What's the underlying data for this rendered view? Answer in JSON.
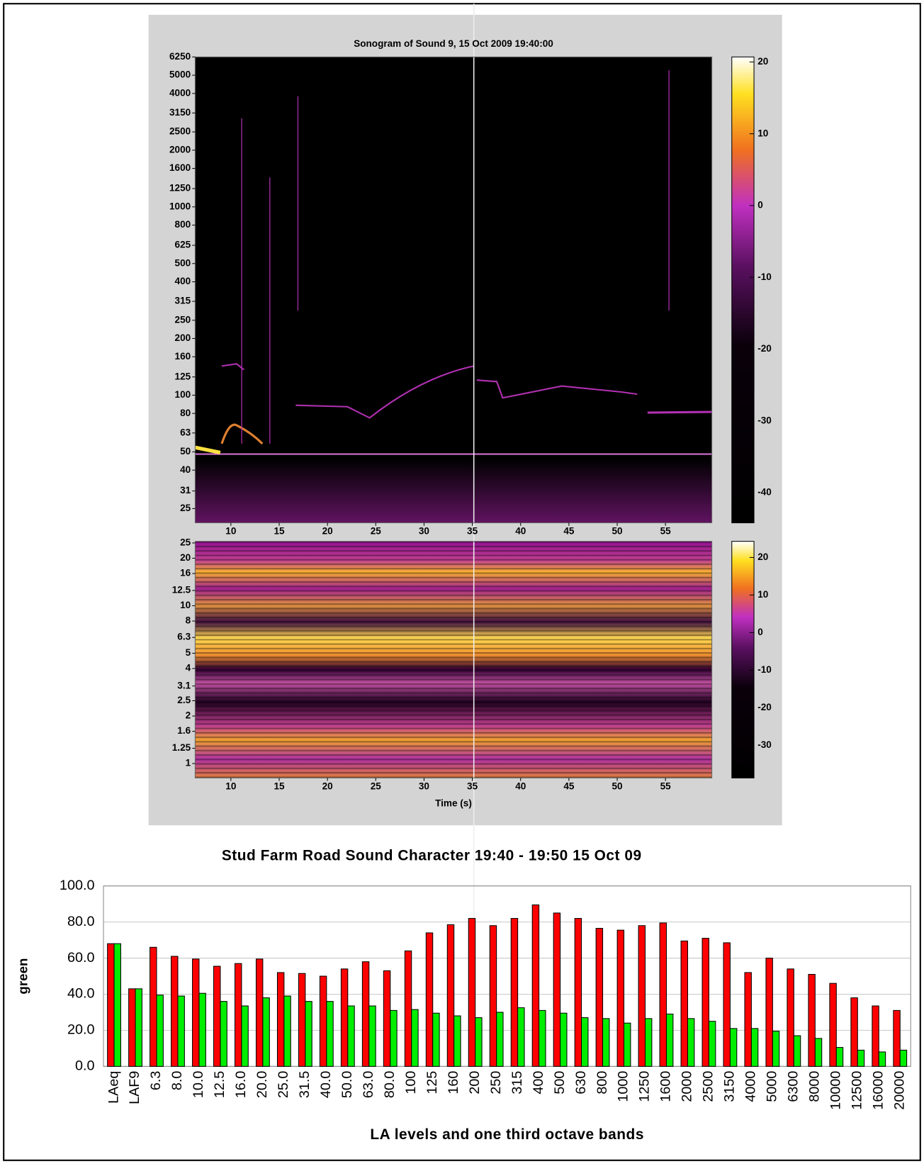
{
  "chart_data": [
    {
      "type": "heatmap",
      "title": "Sonogram of Sound 9, 15 Oct 2009 19:40:00",
      "xlim": [
        6.3,
        59.8
      ],
      "xticks": [
        10,
        15,
        20,
        25,
        30,
        35,
        40,
        45,
        50,
        55
      ],
      "ylim": [
        21,
        6250
      ],
      "ylog": true,
      "yticks": [
        6250,
        5000,
        4000,
        3150,
        2500,
        2000,
        1600,
        1250,
        1000,
        800,
        625,
        500,
        400,
        315,
        250,
        200,
        160,
        125,
        100,
        80,
        63,
        50,
        40,
        31,
        25
      ],
      "clim": [
        -44.2,
        20.7
      ],
      "colorbar_ticks": [
        20,
        10,
        0,
        -10,
        -20,
        -30,
        -40
      ]
    },
    {
      "type": "heatmap",
      "x_label": "Time (s)",
      "xlim": [
        6.3,
        59.8
      ],
      "xticks": [
        10,
        15,
        20,
        25,
        30,
        35,
        40,
        45,
        50,
        55
      ],
      "ylim": [
        0.81,
        25.6
      ],
      "ylog": true,
      "yticks": [
        25,
        20,
        16,
        12.5,
        10,
        8,
        6.3,
        5,
        4,
        3.1,
        2.5,
        2,
        1.6,
        1.25,
        1
      ],
      "clim": [
        -38.7,
        24.3
      ],
      "colorbar_ticks": [
        20,
        10,
        0,
        -10,
        -20,
        -30
      ]
    },
    {
      "type": "bar",
      "title": "Stud Farm Road Sound Character 19:40 - 19:50 15 Oct 09",
      "x_label": "LA levels and one third octave bands",
      "y_label": "green",
      "categories": [
        "LAeq",
        "LAF9",
        "6.3",
        "8.0",
        "10.0",
        "12.5",
        "16.0",
        "20.0",
        "25.0",
        "31.5",
        "40.0",
        "50.0",
        "63.0",
        "80.0",
        "100",
        "125",
        "160",
        "200",
        "250",
        "315",
        "400",
        "500",
        "630",
        "800",
        "1000",
        "1250",
        "1600",
        "2000",
        "2500",
        "3150",
        "4000",
        "5000",
        "6300",
        "8000",
        "10000",
        "12500",
        "16000",
        "20000"
      ],
      "series": [
        {
          "color": "#ff0000",
          "values": [
            68,
            43,
            66,
            61,
            59.5,
            55.5,
            57,
            59.5,
            52,
            51.5,
            50,
            54,
            58,
            53,
            64,
            74,
            78.5,
            82,
            78,
            82,
            89.5,
            85,
            82,
            76.5,
            75.5,
            78,
            79.5,
            69.5,
            71,
            68.5,
            52,
            60,
            54,
            51,
            46,
            38,
            33.5,
            31
          ]
        },
        {
          "color": "#00ee00",
          "values": [
            68,
            43,
            39.5,
            39,
            40.5,
            36,
            33.5,
            38,
            39,
            36,
            36,
            33.5,
            33.5,
            31,
            31.5,
            29.5,
            28,
            27,
            30,
            32.5,
            31,
            29.5,
            27,
            26.5,
            24,
            26.5,
            29,
            26.5,
            25,
            21,
            21,
            19.5,
            17,
            15.5,
            10.5,
            9,
            8,
            9
          ]
        }
      ],
      "ylim": [
        0,
        100
      ],
      "yticks": [
        {
          "value": 0,
          "label": "0.0"
        },
        {
          "value": 20,
          "label": "20.0"
        },
        {
          "value": 40,
          "label": "40.0"
        },
        {
          "value": 60,
          "label": "60.0"
        },
        {
          "value": 80,
          "label": "80.0"
        },
        {
          "value": 100,
          "label": "100.0"
        }
      ],
      "grid": true
    }
  ]
}
